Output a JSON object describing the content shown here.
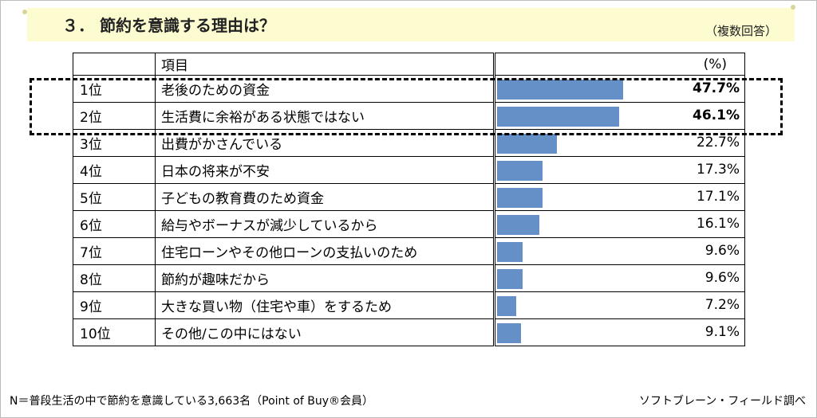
{
  "title": "３． 節約を意識する理由は？",
  "subnote": "（複数回答）",
  "header": {
    "rank": "",
    "item": "項目",
    "unit": "(%)"
  },
  "footnote": "N＝普段生活の中で節約を意識している3,663名（Point of Buy®会員）",
  "source": "ソフトブレーン・フィールド調べ",
  "colors": {
    "bar": "#6490c7",
    "banner": "#fdfbd0"
  },
  "chart_data": {
    "type": "bar",
    "orientation": "horizontal",
    "xlim": [
      0,
      100
    ],
    "ranks": [
      "1位",
      "2位",
      "3位",
      "4位",
      "5位",
      "6位",
      "7位",
      "8位",
      "9位",
      "10位"
    ],
    "categories": [
      "老後のための資金",
      "生活費に余裕がある状態ではない",
      "出費がかさんでいる",
      "日本の将来が不安",
      "子どもの教育費のため資金",
      "給与やボーナスが減少しているから",
      "住宅ローンやその他ローンの支払いのため",
      "節約が趣味だから",
      "大きな買い物（住宅や車）をするため",
      "その他/この中にはない"
    ],
    "values": [
      47.7,
      46.1,
      22.7,
      17.3,
      17.1,
      16.1,
      9.6,
      9.6,
      7.2,
      9.1
    ],
    "value_labels": [
      "47.7%",
      "46.1%",
      "22.7%",
      "17.3%",
      "17.1%",
      "16.1%",
      "9.6%",
      "9.6%",
      "7.2%",
      "9.1%"
    ],
    "highlighted": [
      0,
      1
    ]
  }
}
